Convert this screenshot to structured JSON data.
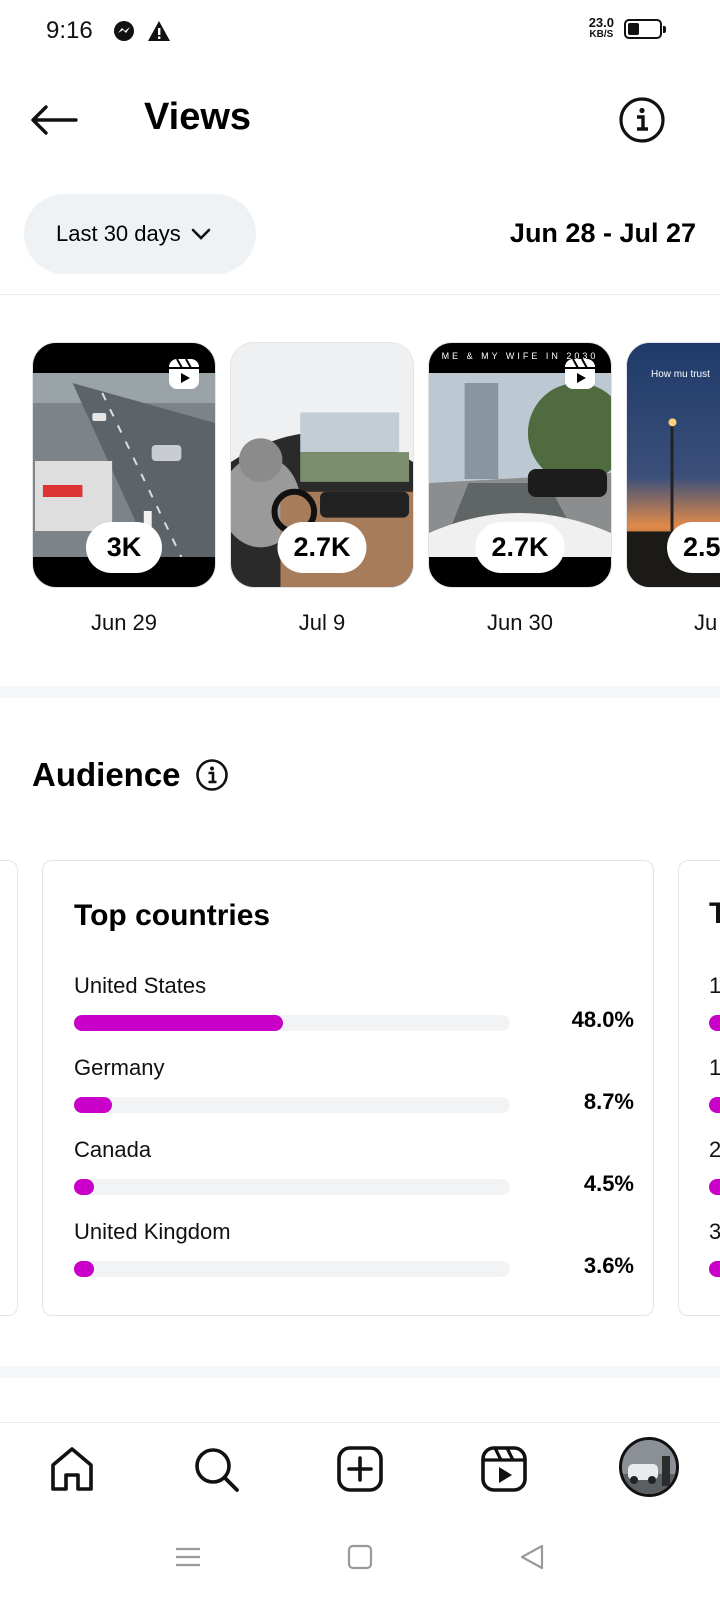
{
  "status_bar": {
    "time": "9:16",
    "net_speed_value": "23.0",
    "net_speed_unit": "KB/S",
    "battery_level": 0.45,
    "icons": [
      "messenger-icon",
      "warning-icon"
    ]
  },
  "header": {
    "title": "Views",
    "back_icon": "arrow-left-icon",
    "info_icon": "info-icon"
  },
  "filter": {
    "range_label": "Last 30 days",
    "date_range": "Jun 28 - Jul 27"
  },
  "reels": [
    {
      "views": "3K",
      "date": "Jun 29",
      "caption": ""
    },
    {
      "views": "2.7K",
      "date": "Jul 9",
      "caption": ""
    },
    {
      "views": "2.7K",
      "date": "Jun 30",
      "caption": "ME & MY WIFE IN 2030"
    },
    {
      "views": "2.5",
      "date": "Ju",
      "caption": "How mu trust"
    }
  ],
  "audience": {
    "title": "Audience",
    "top_countries": {
      "title": "Top countries",
      "items": [
        {
          "name": "United States",
          "pct_label": "48.0%",
          "value": 48.0
        },
        {
          "name": "Germany",
          "pct_label": "8.7%",
          "value": 8.7
        },
        {
          "name": "Canada",
          "pct_label": "4.5%",
          "value": 4.5
        },
        {
          "name": "United Kingdom",
          "pct_label": "3.6%",
          "value": 3.6
        }
      ]
    },
    "next_card_title_fragment": "T",
    "next_card_row_fragments": [
      "1",
      "1",
      "2",
      "3"
    ]
  },
  "colors": {
    "accent": "#c800c8",
    "track": "#f2f3f5",
    "pill": "#eff2f5"
  },
  "bottom_nav": [
    "home-icon",
    "search-icon",
    "create-icon",
    "reels-icon",
    "profile-avatar"
  ],
  "system_nav": [
    "menu-icon",
    "home-square-icon",
    "back-triangle-icon"
  ]
}
